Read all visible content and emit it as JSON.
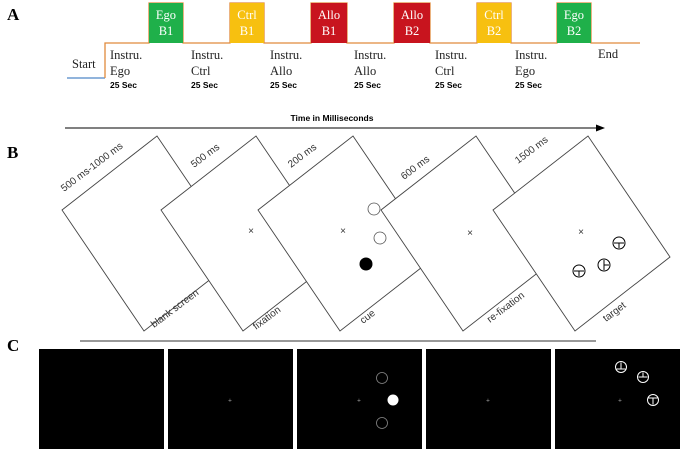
{
  "panels": {
    "a": "A",
    "b": "B",
    "c": "C"
  },
  "timeline": {
    "start_label": "Start",
    "end_label": "End",
    "line_color": "#e08a3c",
    "instructions": [
      {
        "line1": "Instru.",
        "line2": "Ego",
        "duration": "25 Sec"
      },
      {
        "line1": "Instru.",
        "line2": "Ctrl",
        "duration": "25 Sec"
      },
      {
        "line1": "Instru.",
        "line2": "Allo",
        "duration": "25 Sec"
      },
      {
        "line1": "Instru.",
        "line2": "Allo",
        "duration": "25 Sec"
      },
      {
        "line1": "Instru.",
        "line2": "Ctrl",
        "duration": "25 Sec"
      },
      {
        "line1": "Instru.",
        "line2": "Ego",
        "duration": "25 Sec"
      }
    ],
    "blocks": [
      {
        "line1": "Ego",
        "line2": "B1",
        "color": "#1fb04a",
        "text_color": "#ffffff"
      },
      {
        "line1": "Ctrl",
        "line2": "B1",
        "color": "#f7c010",
        "text_color": "#ffffff"
      },
      {
        "line1": "Allo",
        "line2": "B1",
        "color": "#c8141e",
        "text_color": "#ffffff"
      },
      {
        "line1": "Allo",
        "line2": "B2",
        "color": "#c8141e",
        "text_color": "#ffffff"
      },
      {
        "line1": "Ctrl",
        "line2": "B2",
        "color": "#f7c010",
        "text_color": "#ffffff"
      },
      {
        "line1": "Ego",
        "line2": "B2",
        "color": "#1fb04a",
        "text_color": "#ffffff"
      }
    ]
  },
  "time_axis_label": "Time in Milliseconds",
  "trial_screens": [
    {
      "duration": "500 ms-1000 ms",
      "name": "blank screen"
    },
    {
      "duration": "500 ms",
      "name": "fixation"
    },
    {
      "duration": "200 ms",
      "name": "cue"
    },
    {
      "duration": "600 ms",
      "name": "re-fixation"
    },
    {
      "duration": "1500 ms",
      "name": "target"
    }
  ]
}
